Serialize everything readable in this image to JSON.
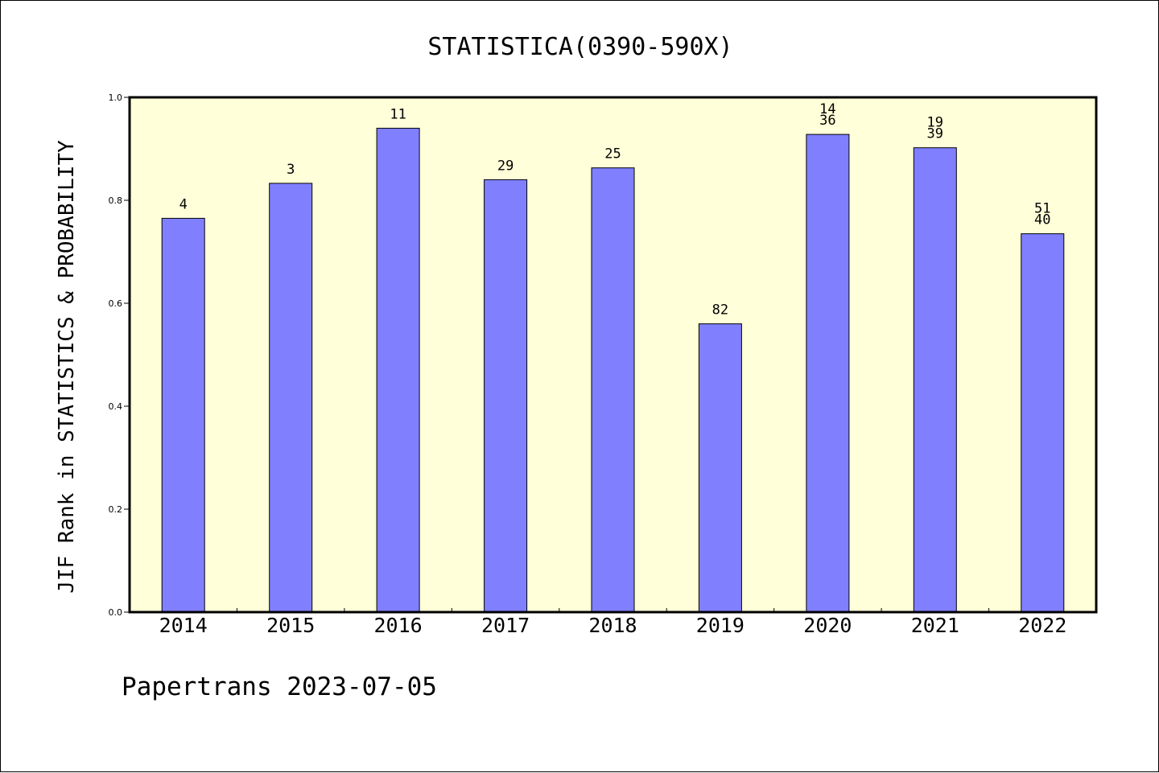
{
  "chart_data": {
    "type": "bar",
    "title": "STATISTICA(0390-590X)",
    "xlabel": "",
    "ylabel": "JIF Rank in STATISTICS & PROBABILITY",
    "ylim": [
      0,
      1.0
    ],
    "yticks": [
      "0.0",
      "0.2",
      "0.4",
      "0.6",
      "0.8",
      "1.0"
    ],
    "grid": false,
    "categories": [
      "2014",
      "2015",
      "2016",
      "2017",
      "2018",
      "2019",
      "2020",
      "2021",
      "2022"
    ],
    "values": [
      0.765,
      0.833,
      0.94,
      0.84,
      0.863,
      0.56,
      0.928,
      0.902,
      0.735
    ],
    "bar_labels": [
      [
        "4"
      ],
      [
        "3"
      ],
      [
        "11"
      ],
      [
        "29"
      ],
      [
        "25"
      ],
      [
        "82"
      ],
      [
        "14",
        "36"
      ],
      [
        "19",
        "39"
      ],
      [
        "51",
        "40"
      ]
    ],
    "plot_background": "#ffffd9",
    "bar_color": "#8080ff"
  },
  "footer": "Papertrans 2023-07-05"
}
